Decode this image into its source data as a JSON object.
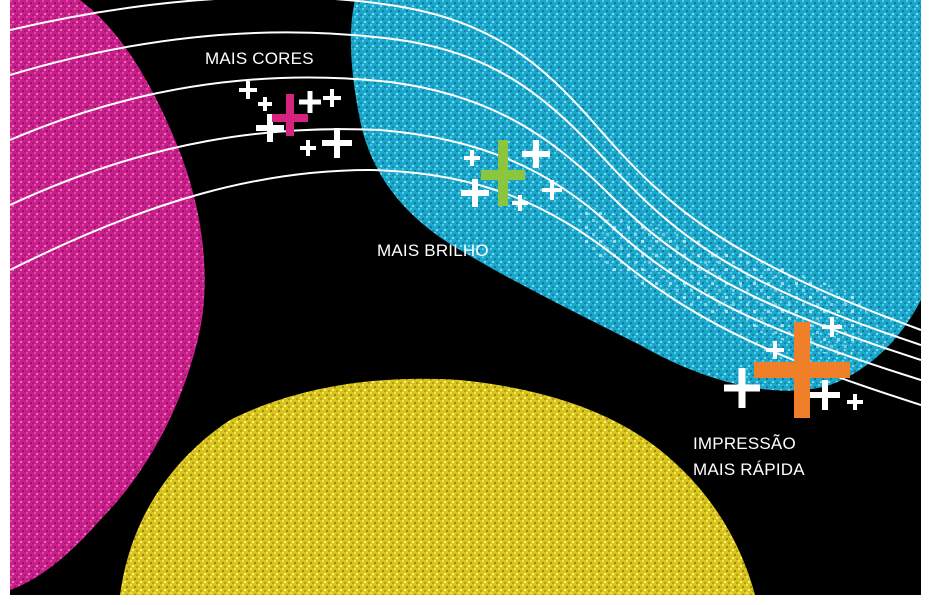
{
  "labels": {
    "more_colors": "MAIS CORES",
    "more_brightness": "MAIS BRILHO",
    "faster_printing_line1": "IMPRESSÃO",
    "faster_printing_line2": "MAIS RÁPIDA"
  },
  "colors": {
    "background": "#000000",
    "frame": "#ffffff",
    "magenta_blob": "#d0208f",
    "cyan_blob": "#1fb4d6",
    "yellow_blob": "#e3d41e",
    "accent_magenta_plus": "#d6247e",
    "accent_green_plus": "#8cc63f",
    "accent_orange_plus": "#f07f2a",
    "curve_lines": "#ffffff",
    "text": "#ffffff"
  },
  "icons": [
    "magenta-plus-icon",
    "green-plus-icon",
    "orange-plus-icon",
    "white-plus-icon"
  ]
}
